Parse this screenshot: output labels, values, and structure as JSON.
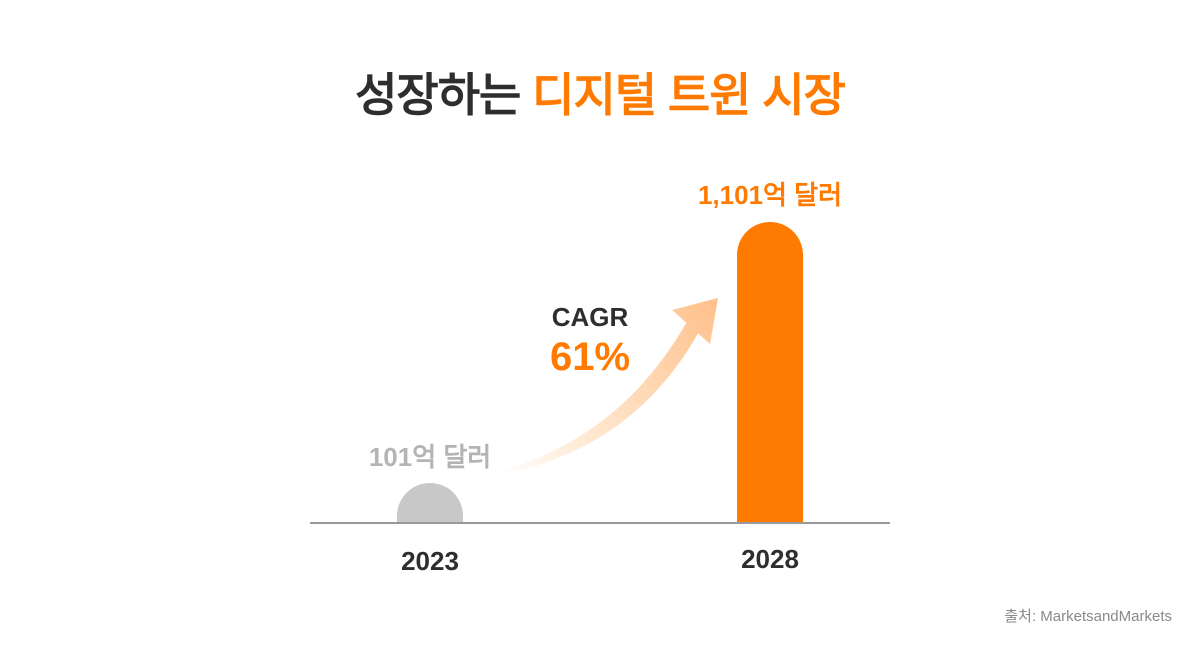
{
  "title": {
    "part1": "성장하는",
    "part2": "디지털 트윈 시장"
  },
  "source": "출처: MarketsandMarkets",
  "colors": {
    "accent": "#ff7a00",
    "muted_bar": "#c8c8c8",
    "muted_label": "#b4b4b4",
    "dark_text": "#2e2e2e",
    "axis": "#999999"
  },
  "chart_data": {
    "type": "bar",
    "categories": [
      "2023",
      "2028"
    ],
    "values": [
      101,
      1101
    ],
    "value_labels": [
      "101억 달러",
      "1,101억 달러"
    ],
    "unit": "억 달러",
    "ylim": [
      0,
      1101
    ],
    "grid": false,
    "legend": "none",
    "annotation": {
      "label": "CAGR",
      "value": "61%"
    }
  }
}
